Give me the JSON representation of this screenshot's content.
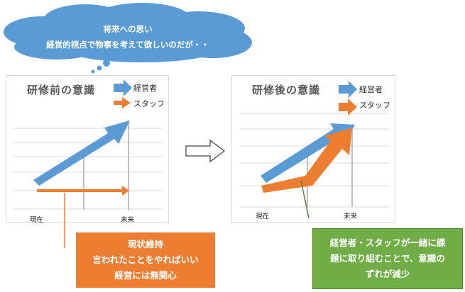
{
  "thought_bubble": {
    "line1": "将来への思い",
    "line2": "経営的視点で物事を考えて欲しいのだが・・"
  },
  "before_panel": {
    "title": "研修前の意識",
    "legend": [
      {
        "label": "経営者",
        "color": "#5b9bd5"
      },
      {
        "label": "スタッフ",
        "color": "#ed7d31"
      }
    ],
    "x_labels": [
      "現在",
      "未来"
    ]
  },
  "after_panel": {
    "title": "研修後の意識",
    "legend": [
      {
        "label": "経営者",
        "color": "#5b9bd5"
      },
      {
        "label": "スタッフ",
        "color": "#ed7d31"
      }
    ],
    "x_labels": [
      "現在",
      "未来"
    ]
  },
  "transition_arrow": "right-outline-arrow",
  "callout_before": {
    "lines": [
      "現状維持",
      "言われたことをやればいい",
      "経営には無関心"
    ],
    "color": "#ed7d31"
  },
  "callout_after": {
    "lines": [
      "経営者・スタッフが一緒に課",
      "題に取り組むことで、意識の",
      "ずれが減少"
    ],
    "color": "#70ad47"
  }
}
